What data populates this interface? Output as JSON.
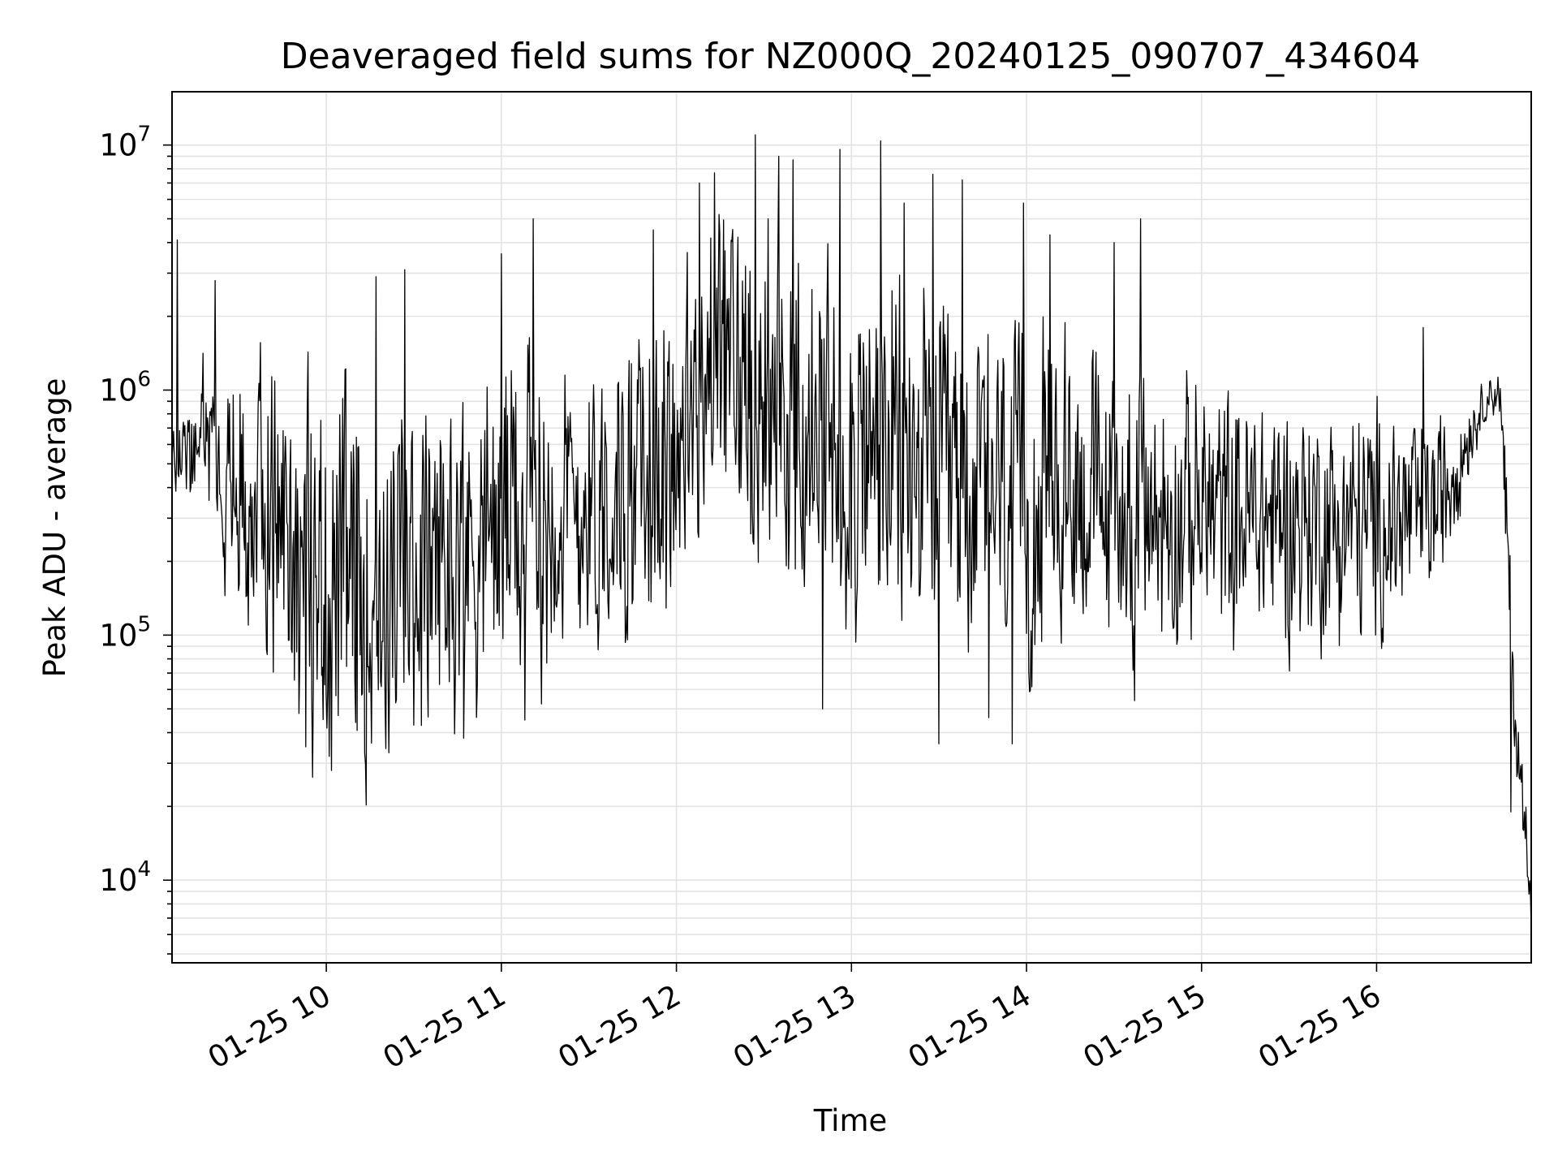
{
  "chart_data": {
    "type": "line",
    "title": "Deaveraged field sums for NZ000Q_20240125_090707_434604",
    "xlabel": "Time",
    "ylabel": "Peak ADU - average",
    "yscale": "log",
    "ylim": [
      4600,
      16500000
    ],
    "xlim": [
      "2024-01-25 09:07:07",
      "2024-01-25 16:53:00"
    ],
    "grid": true,
    "line_color": "#000000",
    "grid_color": "#e3e3e3",
    "x_ticks": [
      {
        "value": "2024-01-25 10:00",
        "label": "01-25 10"
      },
      {
        "value": "2024-01-25 11:00",
        "label": "01-25 11"
      },
      {
        "value": "2024-01-25 12:00",
        "label": "01-25 12"
      },
      {
        "value": "2024-01-25 13:00",
        "label": "01-25 13"
      },
      {
        "value": "2024-01-25 14:00",
        "label": "01-25 14"
      },
      {
        "value": "2024-01-25 15:00",
        "label": "01-25 15"
      },
      {
        "value": "2024-01-25 16:00",
        "label": "01-25 16"
      }
    ],
    "y_ticks": [
      {
        "value": 10000,
        "base": "10",
        "exp": "4"
      },
      {
        "value": 100000,
        "base": "10",
        "exp": "5"
      },
      {
        "value": 1000000,
        "base": "10",
        "exp": "6"
      },
      {
        "value": 10000000,
        "base": "10",
        "exp": "7"
      }
    ],
    "envelope_x": [
      "2024-01-25 09:07",
      "2024-01-25 09:20",
      "2024-01-25 09:30",
      "2024-01-25 09:45",
      "2024-01-25 10:00",
      "2024-01-25 10:15",
      "2024-01-25 10:30",
      "2024-01-25 10:45",
      "2024-01-25 11:00",
      "2024-01-25 11:15",
      "2024-01-25 11:30",
      "2024-01-25 11:45",
      "2024-01-25 12:00",
      "2024-01-25 12:15",
      "2024-01-25 12:30",
      "2024-01-25 12:45",
      "2024-01-25 13:00",
      "2024-01-25 13:15",
      "2024-01-25 13:30",
      "2024-01-25 13:45",
      "2024-01-25 14:00",
      "2024-01-25 14:15",
      "2024-01-25 14:30",
      "2024-01-25 14:45",
      "2024-01-25 15:00",
      "2024-01-25 15:15",
      "2024-01-25 15:30",
      "2024-01-25 15:45",
      "2024-01-25 16:00",
      "2024-01-25 16:10",
      "2024-01-25 16:20",
      "2024-01-25 16:30",
      "2024-01-25 16:35",
      "2024-01-25 16:38",
      "2024-01-25 16:42",
      "2024-01-25 16:45",
      "2024-01-25 16:48",
      "2024-01-25 16:53"
    ],
    "envelope_center": [
      520000,
      700000,
      380000,
      300000,
      160000,
      150000,
      180000,
      230000,
      300000,
      330000,
      350000,
      380000,
      560000,
      1300000,
      1000000,
      560000,
      560000,
      520000,
      420000,
      420000,
      300000,
      420000,
      330000,
      300000,
      330000,
      300000,
      300000,
      280000,
      280000,
      300000,
      330000,
      600000,
      800000,
      950000,
      1000000,
      200000,
      33000,
      10000
    ],
    "envelope_spread": [
      0.15,
      0.5,
      0.8,
      1.0,
      1.1,
      1.05,
      1.0,
      0.95,
      0.95,
      0.95,
      0.9,
      0.9,
      0.95,
      1.0,
      1.05,
      1.1,
      1.1,
      1.05,
      1.0,
      0.95,
      1.0,
      0.9,
      0.8,
      0.8,
      0.75,
      0.75,
      0.75,
      0.7,
      0.7,
      0.65,
      0.55,
      0.3,
      0.15,
      0.12,
      0.15,
      0.5,
      0.3,
      0.2
    ],
    "peaks": [
      {
        "x": "2024-01-25 09:09",
        "y": 4100000
      },
      {
        "x": "2024-01-25 09:22",
        "y": 2800000
      },
      {
        "x": "2024-01-25 10:17",
        "y": 2900000
      },
      {
        "x": "2024-01-25 10:27",
        "y": 3100000
      },
      {
        "x": "2024-01-25 11:00",
        "y": 3600000
      },
      {
        "x": "2024-01-25 11:11",
        "y": 5000000
      },
      {
        "x": "2024-01-25 11:52",
        "y": 4500000
      },
      {
        "x": "2024-01-25 12:08",
        "y": 7000000
      },
      {
        "x": "2024-01-25 12:13",
        "y": 7700000
      },
      {
        "x": "2024-01-25 12:27",
        "y": 11000000
      },
      {
        "x": "2024-01-25 12:35",
        "y": 9000000
      },
      {
        "x": "2024-01-25 12:40",
        "y": 8700000
      },
      {
        "x": "2024-01-25 12:56",
        "y": 9600000
      },
      {
        "x": "2024-01-25 13:10",
        "y": 10400000
      },
      {
        "x": "2024-01-25 13:18",
        "y": 5800000
      },
      {
        "x": "2024-01-25 13:28",
        "y": 7600000
      },
      {
        "x": "2024-01-25 13:38",
        "y": 7200000
      },
      {
        "x": "2024-01-25 13:59",
        "y": 5800000
      },
      {
        "x": "2024-01-25 14:08",
        "y": 4300000
      },
      {
        "x": "2024-01-25 14:30",
        "y": 4000000
      },
      {
        "x": "2024-01-25 14:39",
        "y": 5000000
      },
      {
        "x": "2024-01-25 16:16",
        "y": 1800000
      }
    ],
    "troughs": [
      {
        "x": "2024-01-25 09:53",
        "y": 35000
      },
      {
        "x": "2024-01-25 10:01",
        "y": 32000
      },
      {
        "x": "2024-01-25 10:10",
        "y": 44000
      },
      {
        "x": "2024-01-25 10:47",
        "y": 38000
      },
      {
        "x": "2024-01-25 11:08",
        "y": 45000
      },
      {
        "x": "2024-01-25 12:50",
        "y": 50000
      },
      {
        "x": "2024-01-25 13:30",
        "y": 36000
      },
      {
        "x": "2024-01-25 13:47",
        "y": 46000
      },
      {
        "x": "2024-01-25 13:55",
        "y": 36000
      },
      {
        "x": "2024-01-25 14:37",
        "y": 54000
      },
      {
        "x": "2024-01-25 16:46",
        "y": 19000
      },
      {
        "x": "2024-01-25 16:53",
        "y": 6300
      }
    ]
  }
}
